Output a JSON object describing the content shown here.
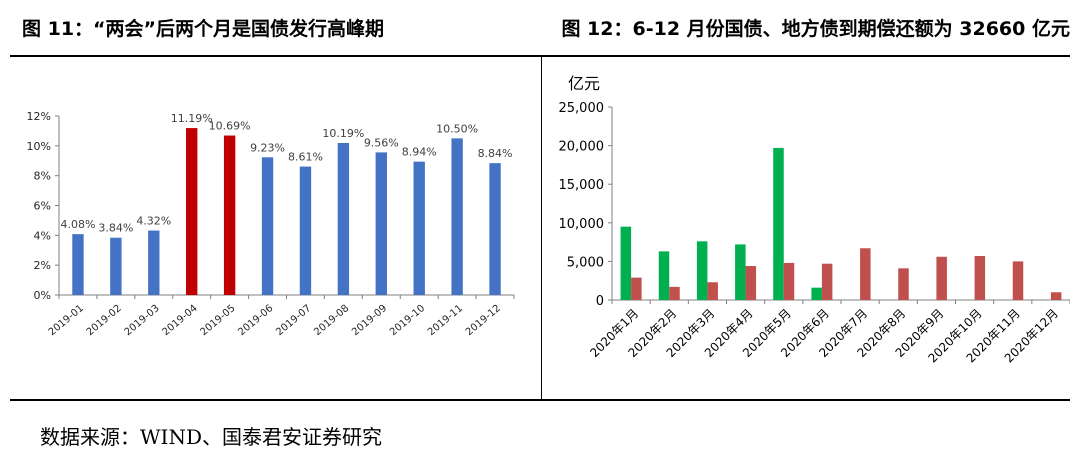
{
  "titles": {
    "left": "图 11：“两会”后两个月是国债发行高峰期",
    "right": "图 12：6-12 月份国债、地方债到期偿还额为 32660 亿元"
  },
  "source": "数据来源：WIND、国泰君安证券研究",
  "chart_data": [
    {
      "type": "bar",
      "categories": [
        "2019-01",
        "2019-02",
        "2019-03",
        "2019-04",
        "2019-05",
        "2019-06",
        "2019-07",
        "2019-08",
        "2019-09",
        "2019-10",
        "2019-11",
        "2019-12"
      ],
      "values": [
        4.08,
        3.84,
        4.32,
        11.19,
        10.69,
        9.23,
        8.61,
        10.19,
        9.56,
        8.94,
        10.5,
        8.84
      ],
      "data_labels": [
        "4.08%",
        "3.84%",
        "4.32%",
        "11.19%",
        "10.69%",
        "9.23%",
        "8.61%",
        "10.19%",
        "9.56%",
        "8.94%",
        "10.50%",
        "8.84%"
      ],
      "bar_colors": [
        "#4472C4",
        "#4472C4",
        "#4472C4",
        "#C00000",
        "#C00000",
        "#4472C4",
        "#4472C4",
        "#4472C4",
        "#4472C4",
        "#4472C4",
        "#4472C4",
        "#4472C4"
      ],
      "yticks": [
        0,
        2,
        4,
        6,
        8,
        10,
        12
      ],
      "ytick_labels": [
        "0%",
        "2%",
        "4%",
        "6%",
        "8%",
        "10%",
        "12%"
      ],
      "ylim": [
        0,
        12
      ],
      "grid": false
    },
    {
      "type": "bar",
      "categories": [
        "2020年1月",
        "2020年2月",
        "2020年3月",
        "2020年4月",
        "2020年5月",
        "2020年6月",
        "2020年7月",
        "2020年8月",
        "2020年9月",
        "2020年10月",
        "2020年11月",
        "2020年12月"
      ],
      "series": [
        {
          "color": "#00B050",
          "values": [
            9500,
            6300,
            7600,
            7200,
            19700,
            1600,
            null,
            null,
            null,
            null,
            null,
            null
          ]
        },
        {
          "color": "#C0504D",
          "values": [
            2900,
            1700,
            2300,
            4400,
            4800,
            4700,
            6700,
            4100,
            5600,
            5700,
            5000,
            1000
          ]
        }
      ],
      "ylabel": "亿元",
      "yticks": [
        0,
        5000,
        10000,
        15000,
        20000,
        25000
      ],
      "ytick_labels": [
        "0",
        "5,000",
        "10,000",
        "15,000",
        "20,000",
        "25,000"
      ],
      "ylim": [
        0,
        25000
      ],
      "grid": false,
      "legend": "none"
    }
  ]
}
